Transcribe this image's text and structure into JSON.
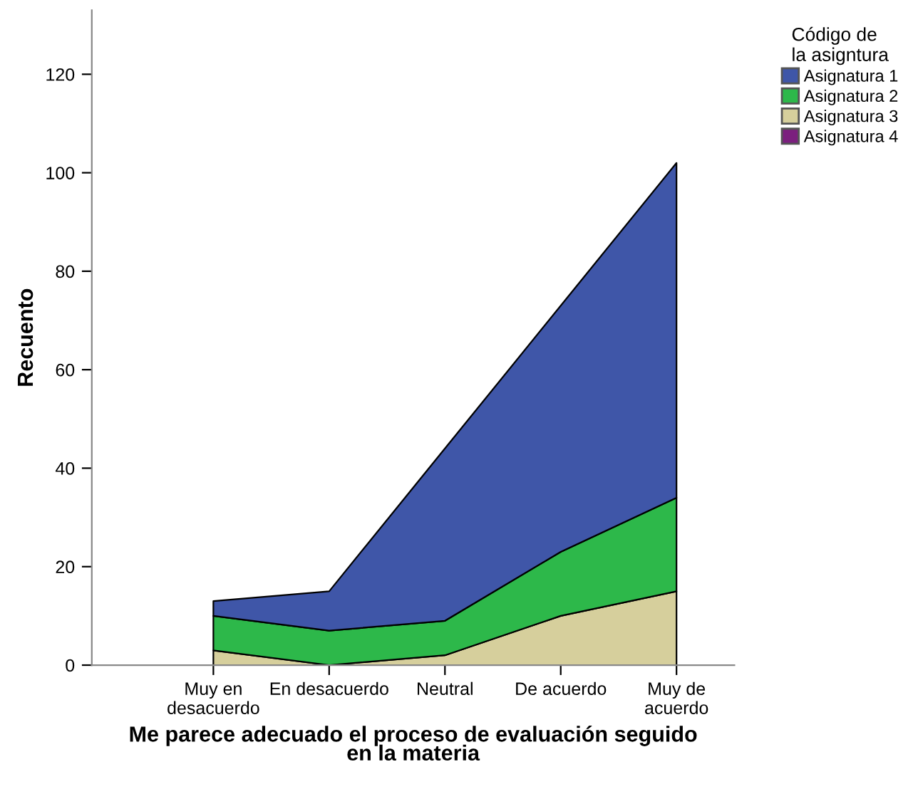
{
  "chart_data": {
    "type": "area",
    "stacked": true,
    "xlabel": "Me parece adecuado el proceso de evaluación seguido\nen la materia",
    "ylabel": "Recuento",
    "legend_title": "Código de\nla asigntura",
    "categories": [
      "Muy en\ndesacuerdo",
      "En desacuerdo",
      "Neutral",
      "De acuerdo",
      "Muy de\nacuerdo"
    ],
    "series": [
      {
        "name": "Asignatura 4",
        "color": "#7b1f7e",
        "values": [
          null,
          null,
          null,
          null,
          null
        ]
      },
      {
        "name": "Asignatura 3",
        "color": "#d6cf9c",
        "values": [
          3,
          0,
          2,
          10,
          15
        ]
      },
      {
        "name": "Asignatura 2",
        "color": "#2db84a",
        "values": [
          7,
          7,
          7,
          13,
          19
        ]
      },
      {
        "name": "Asignatura 1",
        "color": "#3f56a8",
        "values": [
          3,
          8,
          35,
          50,
          68
        ]
      }
    ],
    "ylim": [
      0,
      133
    ],
    "yticks": [
      0,
      20,
      40,
      60,
      80,
      100,
      120
    ],
    "grid": false,
    "legend": "top right"
  }
}
